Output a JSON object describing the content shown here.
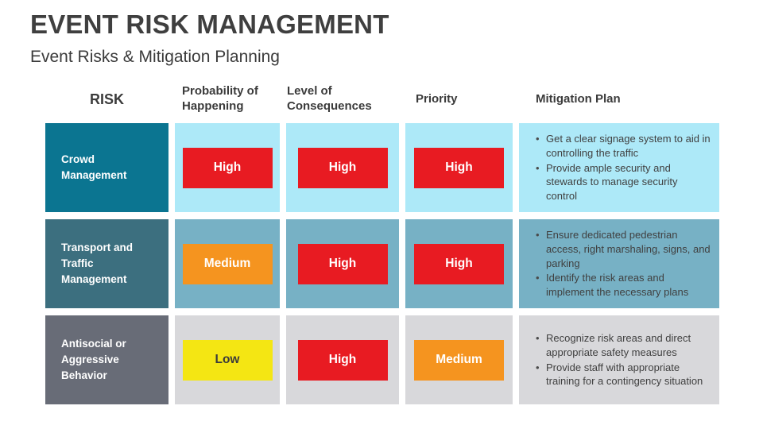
{
  "slide": {
    "title": "EVENT RISK MANAGEMENT",
    "subtitle": "Event Risks & Mitigation Planning"
  },
  "table": {
    "headers": {
      "risk": "RISK",
      "probability": "Probability of Happening",
      "consequences": "Level of Consequences",
      "priority": "Priority",
      "mitigation": "Mitigation Plan"
    },
    "rating_colors": {
      "high": "#E81B22",
      "medium": "#F5941F",
      "low": "#F4E613"
    },
    "rows": [
      {
        "risk": "Crowd Management",
        "row_bg": "#0B7591",
        "cell_bg": "#ADE9F8",
        "probability": {
          "label": "High",
          "bg": "#E81B22",
          "fg": "#FFFFFF"
        },
        "consequences": {
          "label": "High",
          "bg": "#E81B22",
          "fg": "#FFFFFF"
        },
        "priority": {
          "label": "High",
          "bg": "#E81B22",
          "fg": "#FFFFFF"
        },
        "mitigation": [
          "Get a clear signage system to aid in controlling the traffic",
          "Provide ample security and stewards to manage security control"
        ]
      },
      {
        "risk": "Transport and Traffic Management",
        "row_bg": "#3C6F7F",
        "cell_bg": "#77B1C5",
        "probability": {
          "label": "Medium",
          "bg": "#F5941F",
          "fg": "#FFFFFF"
        },
        "consequences": {
          "label": "High",
          "bg": "#E81B22",
          "fg": "#FFFFFF"
        },
        "priority": {
          "label": "High",
          "bg": "#E81B22",
          "fg": "#FFFFFF"
        },
        "mitigation": [
          "Ensure dedicated pedestrian access, right marshaling, signs, and parking",
          "Identify the risk areas and implement the necessary plans"
        ]
      },
      {
        "risk": "Antisocial or Aggressive Behavior",
        "row_bg": "#686C77",
        "cell_bg": "#D8D8DB",
        "probability": {
          "label": "Low",
          "bg": "#F4E613",
          "fg": "#3B3B3B"
        },
        "consequences": {
          "label": "High",
          "bg": "#E81B22",
          "fg": "#FFFFFF"
        },
        "priority": {
          "label": "Medium",
          "bg": "#F5941F",
          "fg": "#FFFFFF"
        },
        "mitigation": [
          "Recognize risk areas and direct appropriate safety measures",
          "Provide staff with appropriate training for a contingency situation"
        ]
      }
    ]
  }
}
